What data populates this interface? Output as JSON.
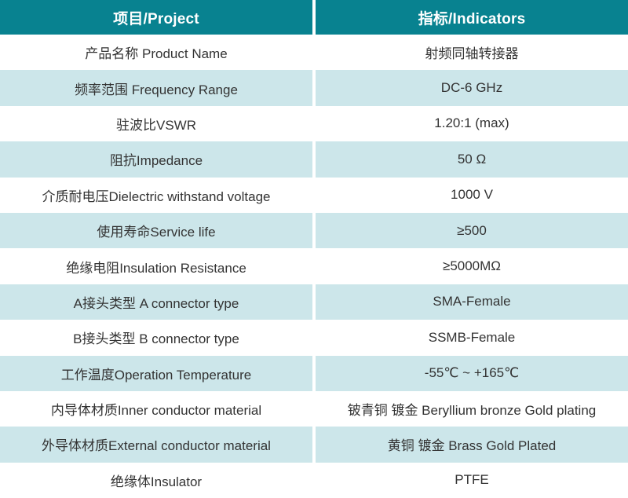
{
  "colors": {
    "header-bg": "#088290",
    "header-text": "#ffffff",
    "row-bg": "#ffffff",
    "row-alt-bg": "#cce6ea",
    "body-text": "#333333"
  },
  "table": {
    "header": {
      "project": "项目/Project",
      "indicators": "指标/Indicators"
    },
    "rows": [
      {
        "project": "产品名称 Product Name",
        "indicator": "射频同轴转接器"
      },
      {
        "project": "频率范围 Frequency Range",
        "indicator": "DC-6 GHz"
      },
      {
        "project": "驻波比VSWR",
        "indicator": "1.20:1 (max)"
      },
      {
        "project": "阻抗Impedance",
        "indicator": "50 Ω"
      },
      {
        "project": "介质耐电压Dielectric withstand voltage",
        "indicator": "1000 V"
      },
      {
        "project": "使用寿命Service life",
        "indicator": "≥500"
      },
      {
        "project": "绝缘电阻Insulation Resistance",
        "indicator": "≥5000MΩ"
      },
      {
        "project": "A接头类型 A connector type",
        "indicator": "SMA-Female"
      },
      {
        "project": "B接头类型 B connector type",
        "indicator": "SSMB-Female"
      },
      {
        "project": "工作温度Operation Temperature",
        "indicator": "-55℃ ~ +165℃"
      },
      {
        "project": "内导体材质Inner conductor material",
        "indicator": "铍青铜 镀金 Beryllium bronze Gold plating"
      },
      {
        "project": "外导体材质External conductor material",
        "indicator": "黄铜 镀金 Brass Gold Plated"
      },
      {
        "project": "绝缘体Insulator",
        "indicator": "PTFE"
      }
    ]
  }
}
